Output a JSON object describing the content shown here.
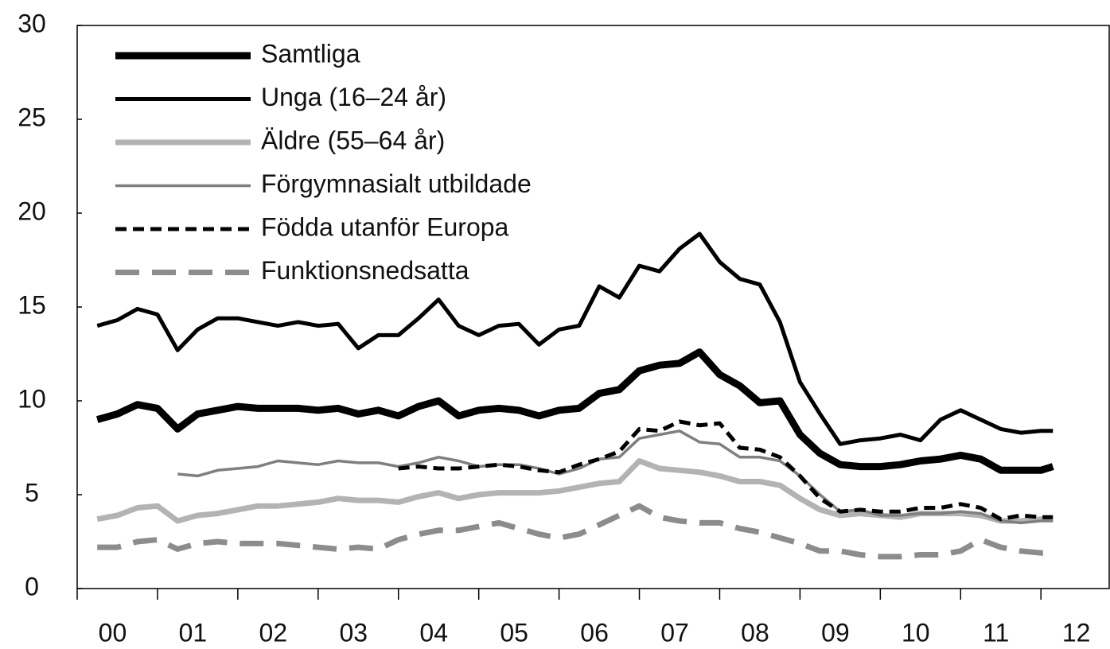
{
  "chart_data": {
    "type": "line",
    "x": [
      0.25,
      0.5,
      0.75,
      1.0,
      1.25,
      1.5,
      1.75,
      2.0,
      2.25,
      2.5,
      2.75,
      3.0,
      3.25,
      3.5,
      3.75,
      4.0,
      4.25,
      4.5,
      4.75,
      5.0,
      5.25,
      5.5,
      5.75,
      6.0,
      6.25,
      6.5,
      6.75,
      7.0,
      7.25,
      7.5,
      7.75,
      8.0,
      8.25,
      8.5,
      8.75,
      9.0,
      9.25,
      9.5,
      9.75,
      10.0,
      10.25,
      10.5,
      10.75,
      11.0,
      11.25,
      11.5,
      11.75,
      12.0,
      12.15
    ],
    "series": [
      {
        "name": "Samtliga",
        "color": "#000000",
        "values": [
          9.0,
          9.3,
          9.8,
          9.6,
          8.5,
          9.3,
          9.5,
          9.7,
          9.6,
          9.6,
          9.6,
          9.5,
          9.6,
          9.3,
          9.5,
          9.2,
          9.7,
          10.0,
          9.2,
          9.5,
          9.6,
          9.5,
          9.2,
          9.5,
          9.6,
          10.4,
          10.6,
          11.6,
          11.9,
          12.0,
          12.6,
          11.4,
          10.8,
          9.9,
          10.0,
          8.2,
          7.2,
          6.6,
          6.5,
          6.5,
          6.6,
          6.8,
          6.9,
          7.1,
          6.9,
          6.3,
          6.3,
          6.3,
          6.5
        ]
      },
      {
        "name": "Unga (16–24 år)",
        "color": "#000000",
        "values": [
          14.0,
          14.3,
          14.9,
          14.6,
          12.7,
          13.8,
          14.4,
          14.4,
          14.2,
          14.0,
          14.2,
          14.0,
          14.1,
          12.8,
          13.5,
          13.5,
          14.4,
          15.4,
          14.0,
          13.5,
          14.0,
          14.1,
          13.0,
          13.8,
          14.0,
          16.1,
          15.5,
          17.2,
          16.9,
          18.1,
          18.9,
          17.4,
          16.5,
          16.2,
          14.2,
          11.0,
          9.3,
          7.7,
          7.9,
          8.0,
          8.2,
          7.9,
          9.0,
          9.5,
          9.0,
          8.5,
          8.3,
          8.4,
          8.4
        ]
      },
      {
        "name": "Äldre (55–64 år)",
        "color": "#b3b3b3",
        "values": [
          3.7,
          3.9,
          4.3,
          4.4,
          3.6,
          3.9,
          4.0,
          4.2,
          4.4,
          4.4,
          4.5,
          4.6,
          4.8,
          4.7,
          4.7,
          4.6,
          4.9,
          5.1,
          4.8,
          5.0,
          5.1,
          5.1,
          5.1,
          5.2,
          5.4,
          5.6,
          5.7,
          6.8,
          6.4,
          6.3,
          6.2,
          6.0,
          5.7,
          5.7,
          5.5,
          4.8,
          4.2,
          3.9,
          4.0,
          3.9,
          3.8,
          4.0,
          4.0,
          4.0,
          3.9,
          3.6,
          3.6,
          3.7,
          3.7
        ]
      },
      {
        "name": "Förgymnasialt utbildade",
        "color": "#7f7f7f",
        "values": [
          null,
          null,
          null,
          null,
          6.1,
          6.0,
          6.3,
          6.4,
          6.5,
          6.8,
          6.7,
          6.6,
          6.8,
          6.7,
          6.7,
          6.5,
          6.7,
          7.0,
          6.8,
          6.5,
          6.6,
          6.6,
          6.4,
          6.1,
          6.4,
          6.9,
          7.0,
          8.0,
          8.2,
          8.4,
          7.8,
          7.7,
          7.0,
          7.0,
          6.8,
          6.0,
          5.0,
          4.1,
          4.2,
          3.9,
          3.9,
          4.0,
          4.0,
          4.1,
          4.0,
          3.6,
          3.5,
          3.6,
          3.6
        ]
      },
      {
        "name": "Födda utanför Europa",
        "color": "#000000",
        "values": [
          null,
          null,
          null,
          null,
          null,
          null,
          null,
          null,
          null,
          null,
          null,
          null,
          null,
          null,
          null,
          6.4,
          6.5,
          6.4,
          6.4,
          6.5,
          6.6,
          6.5,
          6.3,
          6.2,
          6.6,
          6.9,
          7.3,
          8.5,
          8.4,
          8.9,
          8.7,
          8.8,
          7.5,
          7.4,
          7.0,
          6.0,
          4.8,
          4.1,
          4.2,
          4.1,
          4.1,
          4.3,
          4.3,
          4.5,
          4.3,
          3.7,
          3.9,
          3.8,
          3.8
        ]
      },
      {
        "name": "Funktionsnedsatta",
        "color": "#8c8c8c",
        "values": [
          2.2,
          2.2,
          2.5,
          2.6,
          2.1,
          2.4,
          2.5,
          2.4,
          2.4,
          2.4,
          2.3,
          2.2,
          2.1,
          2.2,
          2.1,
          2.6,
          2.9,
          3.1,
          3.1,
          3.3,
          3.5,
          3.2,
          2.9,
          2.7,
          2.9,
          3.4,
          3.9,
          4.4,
          3.8,
          3.6,
          3.5,
          3.5,
          3.2,
          3.0,
          2.7,
          2.4,
          2.0,
          2.0,
          1.8,
          1.7,
          1.7,
          1.8,
          1.8,
          2.0,
          2.6,
          2.2,
          2.0,
          1.9,
          1.9
        ]
      }
    ],
    "xlim": [
      0,
      12.85
    ],
    "xticks": [
      {
        "value": 0,
        "label": "00"
      },
      {
        "value": 1,
        "label": "01"
      },
      {
        "value": 2,
        "label": "02"
      },
      {
        "value": 3,
        "label": "03"
      },
      {
        "value": 4,
        "label": "04"
      },
      {
        "value": 5,
        "label": "05"
      },
      {
        "value": 6,
        "label": "06"
      },
      {
        "value": 7,
        "label": "07"
      },
      {
        "value": 8,
        "label": "08"
      },
      {
        "value": 9,
        "label": "09"
      },
      {
        "value": 10,
        "label": "10"
      },
      {
        "value": 11,
        "label": "11"
      },
      {
        "value": 12,
        "label": "12"
      }
    ],
    "ylim": [
      0,
      30
    ],
    "yticks": [
      0,
      5,
      10,
      15,
      20,
      25,
      30
    ],
    "legend": "upper left"
  }
}
